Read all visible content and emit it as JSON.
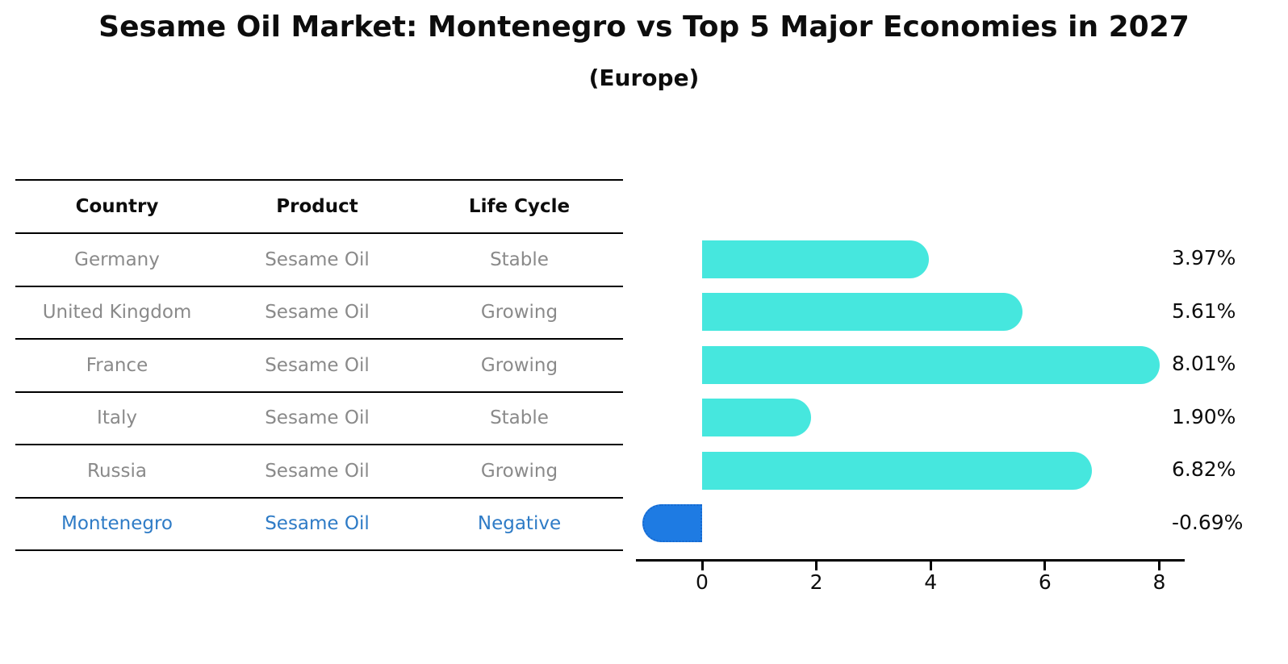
{
  "title": "Sesame Oil Market: Montenegro vs Top 5 Major Economies in 2027",
  "subtitle": "(Europe)",
  "table": {
    "headers": [
      "Country",
      "Product",
      "Life Cycle"
    ],
    "rows": [
      {
        "country": "Germany",
        "product": "Sesame Oil",
        "life_cycle": "Stable",
        "highlight": false
      },
      {
        "country": "United Kingdom",
        "product": "Sesame Oil",
        "life_cycle": "Growing",
        "highlight": false
      },
      {
        "country": "France",
        "product": "Sesame Oil",
        "life_cycle": "Growing",
        "highlight": false
      },
      {
        "country": "Italy",
        "product": "Sesame Oil",
        "life_cycle": "Stable",
        "highlight": false
      },
      {
        "country": "Russia",
        "product": "Sesame Oil",
        "life_cycle": "Growing",
        "highlight": false
      },
      {
        "country": "Montenegro",
        "product": "Sesame Oil",
        "life_cycle": "Negative",
        "highlight": true
      }
    ]
  },
  "chart_data": {
    "type": "bar",
    "orientation": "horizontal",
    "categories": [
      "Germany",
      "United Kingdom",
      "France",
      "Italy",
      "Russia",
      "Montenegro"
    ],
    "values": [
      3.97,
      5.61,
      8.01,
      1.9,
      6.82,
      -0.69
    ],
    "value_labels": [
      "3.97%",
      "5.61%",
      "8.01%",
      "1.90%",
      "6.82%",
      "-0.69%"
    ],
    "x_ticks": [
      "0",
      "2",
      "4",
      "6",
      "8"
    ],
    "x_tick_values": [
      0,
      2,
      4,
      6,
      8
    ],
    "xlim": [
      -1.16,
      8.45
    ],
    "grid": false,
    "legend": "none",
    "bar_color": "#46e7de",
    "highlight_bar_color": "#1e7be3",
    "highlight_border_color": "#1668cf",
    "highlight_index": 5,
    "value_label_position": "right-of-plot"
  },
  "colors": {
    "table_text": "#8a8a8a",
    "table_highlight_text": "#2e7bc6",
    "line": "#000000",
    "title_text": "#0d0d0d"
  }
}
